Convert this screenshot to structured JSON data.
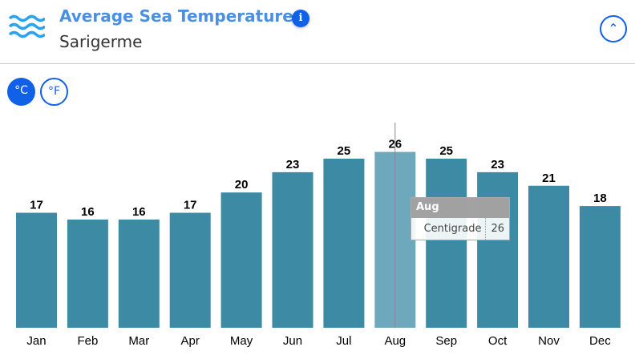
{
  "header": {
    "title": "Average Sea Temperature",
    "subtitle": "Sarigerme",
    "icon": "waves-icon",
    "info_icon": "i",
    "collapse_icon": "chevron-up-icon"
  },
  "units": {
    "celsius": "°C",
    "fahrenheit": "°F",
    "selected": "celsius"
  },
  "tooltip": {
    "title": "Aug",
    "label": "Centigrade",
    "value": "26"
  },
  "chart_data": {
    "type": "bar",
    "categories": [
      "Jan",
      "Feb",
      "Mar",
      "Apr",
      "May",
      "Jun",
      "Jul",
      "Aug",
      "Sep",
      "Oct",
      "Nov",
      "Dec"
    ],
    "series": [
      {
        "name": "Centigrade",
        "values": [
          17,
          16,
          16,
          17,
          20,
          23,
          25,
          26,
          25,
          23,
          21,
          18
        ]
      }
    ],
    "ylim": [
      0,
      30
    ],
    "grid": false,
    "highlighted": "Aug",
    "color": "#3d8aa4",
    "highlight_color": "#6ea8bc"
  }
}
